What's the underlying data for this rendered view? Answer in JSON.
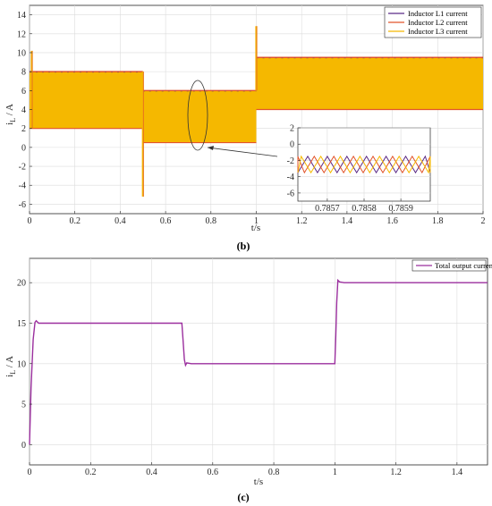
{
  "chart_data": [
    {
      "type": "line",
      "panel_label": "(b)",
      "xlabel": "t/s",
      "ylabel": "i",
      "ylabel_sub": "L",
      "ylabel_unit": " / A",
      "xlim": [
        0,
        2
      ],
      "ylim": [
        -7,
        15
      ],
      "xticks": [
        0,
        0.2,
        0.4,
        0.6,
        0.8,
        1,
        1.2,
        1.4,
        1.6,
        1.8,
        2
      ],
      "yticks": [
        -6,
        -4,
        -2,
        0,
        2,
        4,
        6,
        8,
        10,
        12,
        14
      ],
      "grid": true,
      "legend_position": "top-right",
      "series": [
        {
          "name": "Inductor L1 current",
          "color": "#5b2a86"
        },
        {
          "name": "Inductor L2 current",
          "color": "#e2542a"
        },
        {
          "name": "Inductor L3 current",
          "color": "#f5b800"
        }
      ],
      "segments": [
        {
          "t_start": 0,
          "t_end": 0.5,
          "i_min": 2,
          "i_max": 8
        },
        {
          "t_start": 0.5,
          "t_end": 1.0,
          "i_min": 0.5,
          "i_max": 6
        },
        {
          "t_start": 1.0,
          "t_end": 2.0,
          "i_min": 4,
          "i_max": 9.5
        }
      ],
      "transients": [
        {
          "t": 0.01,
          "value": 10.2
        },
        {
          "t": 0.5,
          "value": -5.2
        },
        {
          "t": 1.0,
          "value": 12.8
        }
      ],
      "inset": {
        "xlim": [
          0.78562,
          0.78598
        ],
        "ylim": [
          -7,
          2
        ],
        "xticks": [
          0.7857,
          0.7858,
          0.7859
        ],
        "yticks": [
          -6,
          -4,
          -2,
          0,
          2
        ],
        "ripple_min": -3.5,
        "ripple_max": -1.5,
        "period": 5.33e-05
      }
    },
    {
      "type": "line",
      "panel_label": "(c)",
      "xlabel": "t/s",
      "ylabel": "i",
      "ylabel_sub": "L",
      "ylabel_unit": " / A",
      "xlim": [
        0,
        1.5
      ],
      "ylim": [
        -2.5,
        23
      ],
      "xticks": [
        0,
        0.2,
        0.4,
        0.6,
        0.8,
        1,
        1.2,
        1.4
      ],
      "yticks": [
        0,
        5,
        10,
        15,
        20
      ],
      "grid": true,
      "legend_position": "top-right",
      "series": [
        {
          "name": "Total output current",
          "color": "#9b2f9e",
          "x": [
            0,
            0.005,
            0.012,
            0.018,
            0.022,
            0.03,
            0.05,
            0.499,
            0.503,
            0.507,
            0.511,
            0.515,
            0.53,
            1.0,
            1.003,
            1.006,
            1.01,
            1.015,
            1.03,
            1.5
          ],
          "y": [
            0,
            7,
            13,
            15.1,
            15.3,
            15,
            15,
            15,
            12.8,
            10.5,
            9.8,
            10.1,
            10,
            10,
            13.5,
            17.5,
            20.3,
            20.1,
            20,
            20
          ]
        }
      ]
    }
  ]
}
